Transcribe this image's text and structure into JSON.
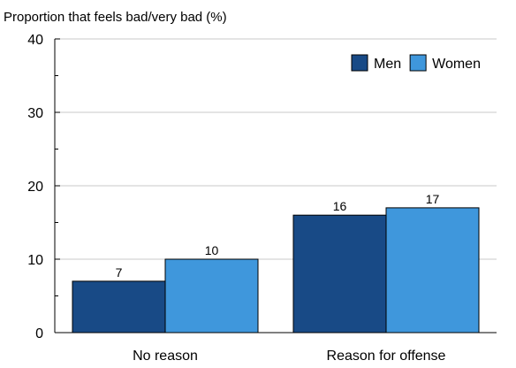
{
  "chart_data": {
    "type": "bar",
    "title": "",
    "ylabel": "Proportion that feels bad/very bad (%)",
    "xlabel": "",
    "categories": [
      "No reason",
      "Reason for offense"
    ],
    "series": [
      {
        "name": "Men",
        "values": [
          7,
          16
        ],
        "color": "#184a86"
      },
      {
        "name": "Women",
        "values": [
          10,
          17
        ],
        "color": "#3f97dc"
      }
    ],
    "ylim": [
      0,
      40
    ],
    "yticks": [
      0,
      10,
      20,
      30,
      40
    ],
    "grid": true,
    "legend": "top-right",
    "data_labels": true
  }
}
